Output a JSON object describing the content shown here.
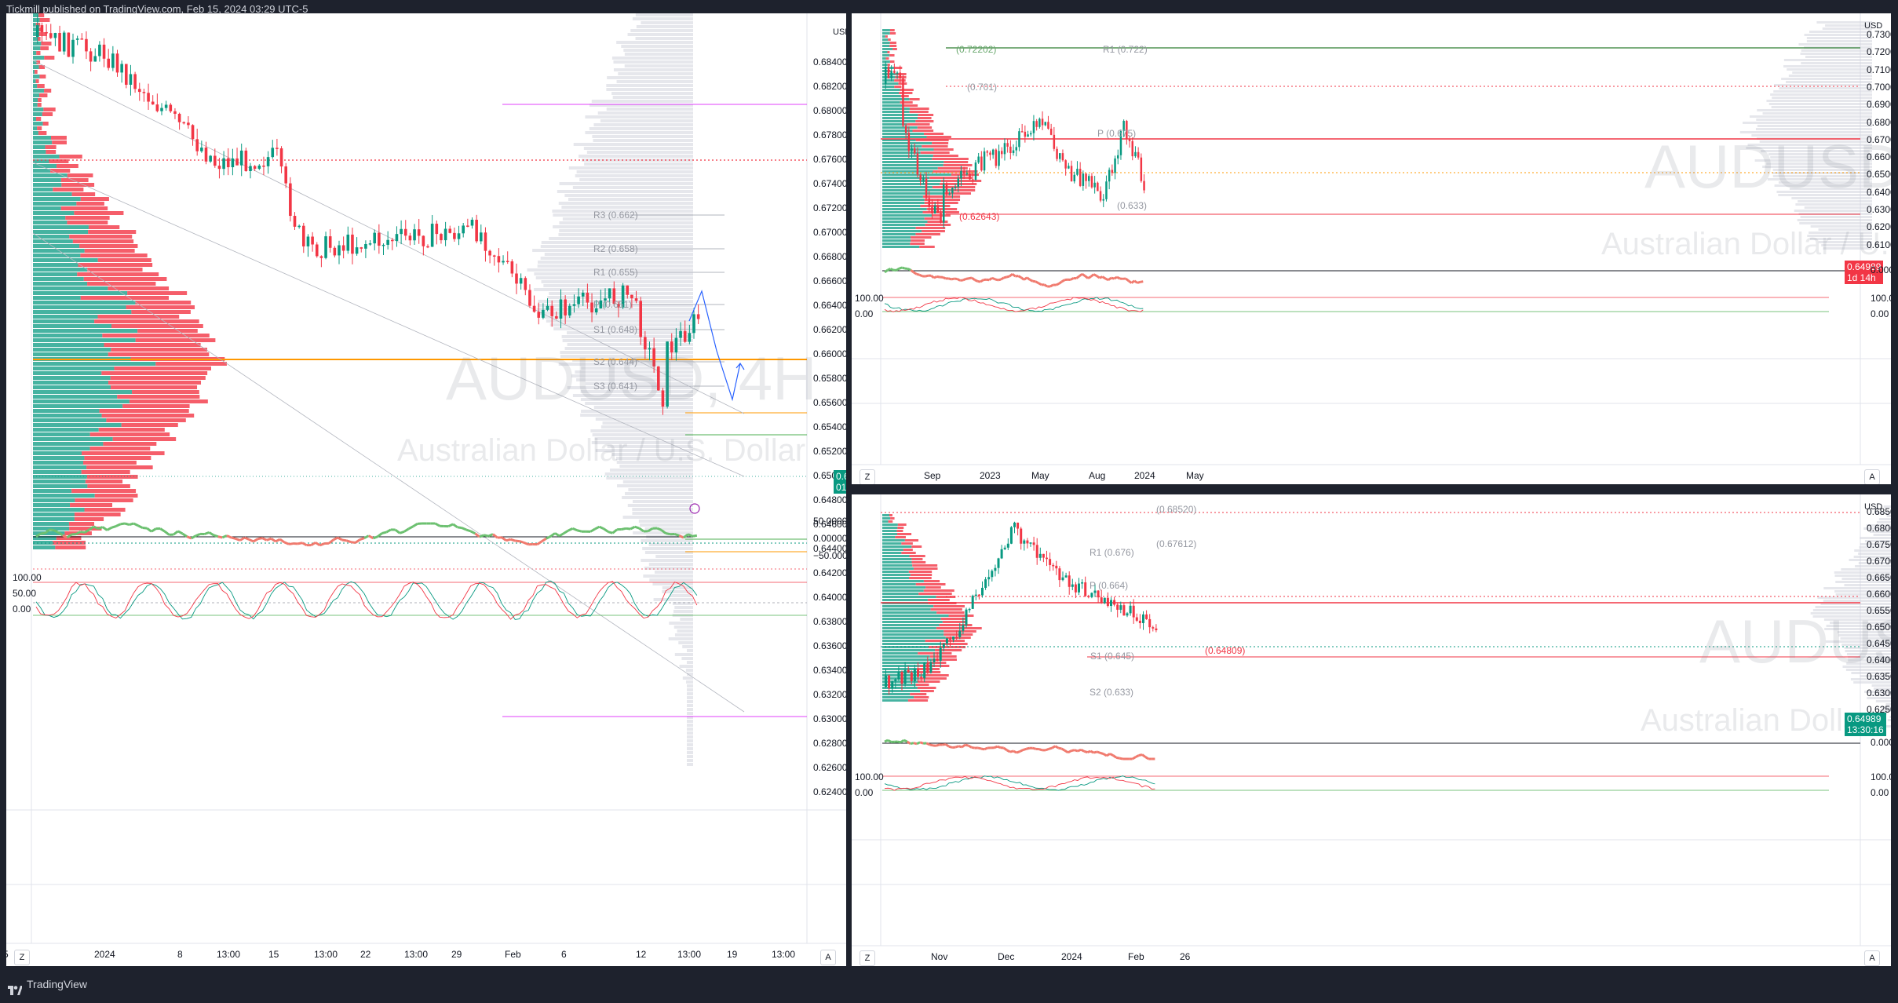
{
  "header": {
    "publisher_text": "Tickmill published on TradingView.com, Feb 15, 2024 03:29 UTC-5"
  },
  "footer": {
    "brand": "TradingView"
  },
  "colors": {
    "up": "#089981",
    "down": "#f23645",
    "bg_dark": "#1e222d",
    "level_red": "#f23645",
    "level_orange": "#ff9800",
    "magenta": "#e040fb",
    "green_line": "#4caf50",
    "forecast": "#2962ff"
  },
  "main": {
    "currency": "USD",
    "watermark_symbol": "AUDUSD, 4H",
    "watermark_name": "Australian Dollar / U.S. Dollar",
    "price_labels": [
      "0.68400",
      "0.68200",
      "0.68000",
      "0.67800",
      "0.67600",
      "0.67400",
      "0.67200",
      "0.67000",
      "0.66800",
      "0.66600",
      "0.66400",
      "0.66200",
      "0.66000",
      "0.65800",
      "0.65600",
      "0.65400",
      "0.65200",
      "0.65000",
      "0.64800",
      "0.64600",
      "0.64400",
      "0.64200",
      "0.64000",
      "0.63800",
      "0.63600",
      "0.63400",
      "0.63200",
      "0.63000",
      "0.62800",
      "0.62600",
      "0.62400"
    ],
    "last_price": "0.64989",
    "countdown": "01:30:16",
    "pivots": [
      "R3 (0.662)",
      "R2 (0.658)",
      "R1 (0.655)",
      "P (0.651)",
      "S1 (0.648)",
      "S2 (0.644)",
      "S3 (0.641)"
    ],
    "osc1_labels": [
      "50.00000",
      "0.00000",
      "−50.00000"
    ],
    "osc2_labels": [
      "100.00",
      "50.00",
      "0.00"
    ],
    "time_labels": [
      "5",
      "2024",
      "8",
      "13:00",
      "15",
      "13:00",
      "22",
      "13:00",
      "29",
      "Feb",
      "6",
      "12",
      "13:00",
      "19",
      "13:00"
    ],
    "scale_btn": "A",
    "zoom_btn": "Z"
  },
  "weekly": {
    "currency": "USD",
    "watermark_symbol": "AUDUSD, 1W",
    "watermark_name": "Australian Dollar / U.S. Dollar",
    "price_labels": [
      "0.73000",
      "0.72000",
      "0.71000",
      "0.70000",
      "0.69000",
      "0.68000",
      "0.67000",
      "0.66000",
      "0.65000",
      "0.64000",
      "0.63000",
      "0.62000",
      "0.61000"
    ],
    "last_price": "0.64989",
    "countdown": "1d 14h",
    "annotations": [
      "(0.72202)",
      "R1 (0.722)",
      "(0.701)",
      "P (0.675)",
      "(0.633)",
      "(0.62643)"
    ],
    "osc1_labels": [
      "0.00000"
    ],
    "osc2_labels": [
      "100.00",
      "0.00"
    ],
    "time_labels": [
      "Sep",
      "2023",
      "May",
      "Aug",
      "2024",
      "May"
    ],
    "scale_btn": "A",
    "zoom_btn": "Z"
  },
  "daily": {
    "currency": "USD",
    "watermark_symbol": "AUDUSD, 1D",
    "watermark_name": "Australian Dollar / U.S. Dollar",
    "price_labels": [
      "0.68500",
      "0.68000",
      "0.67500",
      "0.67000",
      "0.66500",
      "0.66000",
      "0.65500",
      "0.65000",
      "0.64500",
      "0.64000",
      "0.63500",
      "0.63000",
      "0.62500"
    ],
    "last_price": "0.64989",
    "countdown": "13:30:16",
    "annotations": [
      "(0.68520)",
      "(0.67612)",
      "R1 (0.676)",
      "P (0.664)",
      "(0.64809)",
      "S1 (0.645)",
      "S2 (0.633)"
    ],
    "osc1_labels": [
      "0.00000"
    ],
    "osc2_labels": [
      "100.00",
      "0.00"
    ],
    "time_labels": [
      "Nov",
      "Dec",
      "2024",
      "Feb",
      "26"
    ],
    "scale_btn": "A",
    "zoom_btn": "Z"
  }
}
